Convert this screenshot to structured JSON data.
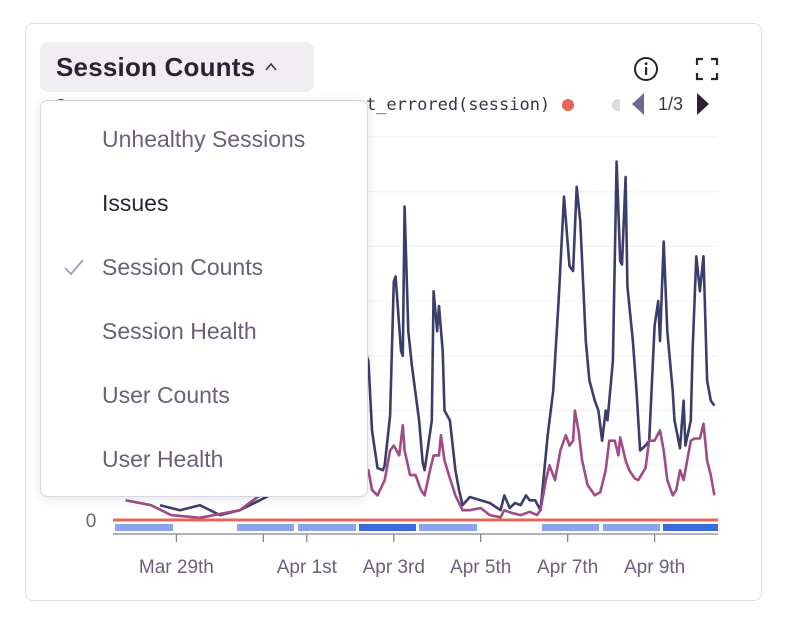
{
  "widget": {
    "title": "Session Counts",
    "info_icon": "info-icon",
    "fullscreen_icon": "expand-icon",
    "chevron_icon": "chevron-up-icon"
  },
  "legend": {
    "items": [
      {
        "label": "count_errored(session)",
        "color": "#e5675a"
      }
    ],
    "page": "1/3"
  },
  "dropdown": {
    "items": [
      {
        "label": "Unhealthy Sessions",
        "selected": false
      },
      {
        "label": "Issues",
        "selected": false
      },
      {
        "label": "Session Counts",
        "selected": true
      },
      {
        "label": "Session Health",
        "selected": false
      },
      {
        "label": "User Counts",
        "selected": false
      },
      {
        "label": "User Health",
        "selected": false
      }
    ]
  },
  "chart_data": {
    "type": "line",
    "grid": true,
    "xlim": [
      "03-27 13:00",
      "04-10 11:00"
    ],
    "ylim": [
      0,
      7
    ],
    "y_tick_labels": [
      "0"
    ],
    "x_tick_labels": [
      {
        "label": "Mar 29th",
        "at": "03-29 00:00"
      },
      {
        "label": "",
        "at": "03-31 00:00"
      },
      {
        "label": "Apr 1st",
        "at": "04-01 00:00"
      },
      {
        "label": "Apr 3rd",
        "at": "04-03 00:00"
      },
      {
        "label": "Apr 5th",
        "at": "04-05 00:00"
      },
      {
        "label": "Apr 7th",
        "at": "04-07 00:00"
      },
      {
        "label": "Apr 9th",
        "at": "04-09 00:00"
      }
    ],
    "series": [
      {
        "color": "#3d3d6b",
        "points": [
          [
            "03-28 15:00",
            0.27
          ],
          [
            "03-29 02:00",
            0.18
          ],
          [
            "03-29 13:00",
            0.27
          ],
          [
            "03-30 00:00",
            0.09
          ],
          [
            "03-30 11:00",
            0.18
          ],
          [
            "03-30 22:00",
            0.36
          ],
          [
            "03-31 20:00",
            0.73
          ],
          [
            "04-01 19:00",
            1.27
          ],
          [
            "04-02 08:00",
            3.09
          ],
          [
            "04-02 10:00",
            2.91
          ],
          [
            "04-02 12:00",
            1.64
          ],
          [
            "04-02 15:00",
            0.95
          ],
          [
            "04-02 18:00",
            0.91
          ],
          [
            "04-02 19:00",
            1.0
          ],
          [
            "04-02 22:00",
            1.91
          ],
          [
            "04-03 00:00",
            4.36
          ],
          [
            "04-03 01:00",
            4.45
          ],
          [
            "04-03 04:00",
            3.09
          ],
          [
            "04-03 05:00",
            3.0
          ],
          [
            "04-03 06:00",
            5.73
          ],
          [
            "04-03 08:00",
            3.45
          ],
          [
            "04-03 10:00",
            2.82
          ],
          [
            "04-03 14:00",
            1.82
          ],
          [
            "04-03 16:00",
            1.05
          ],
          [
            "04-03 17:00",
            0.91
          ],
          [
            "04-03 19:00",
            1.36
          ],
          [
            "04-03 21:00",
            1.82
          ],
          [
            "04-03 22:00",
            4.18
          ],
          [
            "04-04 00:00",
            3.45
          ],
          [
            "04-04 01:00",
            3.91
          ],
          [
            "04-04 03:00",
            3.09
          ],
          [
            "04-04 04:00",
            2.0
          ],
          [
            "04-04 07:00",
            1.82
          ],
          [
            "04-04 10:00",
            0.91
          ],
          [
            "04-04 12:00",
            0.55
          ],
          [
            "04-04 14:00",
            0.27
          ],
          [
            "04-04 18:00",
            0.42
          ],
          [
            "04-05 00:00",
            0.36
          ],
          [
            "04-05 05:00",
            0.31
          ],
          [
            "04-05 11:00",
            0.18
          ],
          [
            "04-05 13:00",
            0.45
          ],
          [
            "04-05 16:00",
            0.22
          ],
          [
            "04-05 19:00",
            0.31
          ],
          [
            "04-05 22:00",
            0.27
          ],
          [
            "04-06 01:00",
            0.45
          ],
          [
            "04-06 03:00",
            0.36
          ],
          [
            "04-06 06:00",
            0.36
          ],
          [
            "04-06 09:00",
            0.18
          ],
          [
            "04-06 13:00",
            1.55
          ],
          [
            "04-06 16:00",
            2.36
          ],
          [
            "04-06 19:00",
            4.0
          ],
          [
            "04-06 22:00",
            5.91
          ],
          [
            "04-07 01:00",
            4.64
          ],
          [
            "04-07 03:00",
            4.55
          ],
          [
            "04-07 05:00",
            6.09
          ],
          [
            "04-07 07:00",
            5.45
          ],
          [
            "04-07 10:00",
            3.27
          ],
          [
            "04-07 12:00",
            2.55
          ],
          [
            "04-07 15:00",
            2.18
          ],
          [
            "04-07 17:00",
            2.0
          ],
          [
            "04-07 19:00",
            1.45
          ],
          [
            "04-07 21:00",
            2.0
          ],
          [
            "04-07 22:00",
            1.82
          ],
          [
            "04-08 01:00",
            2.91
          ],
          [
            "04-08 03:00",
            6.55
          ],
          [
            "04-08 05:00",
            4.73
          ],
          [
            "04-08 06:00",
            4.67
          ],
          [
            "04-08 08:00",
            6.27
          ],
          [
            "04-08 09:00",
            4.27
          ],
          [
            "04-08 12:00",
            3.27
          ],
          [
            "04-08 14:00",
            2.36
          ],
          [
            "04-08 16:00",
            1.27
          ],
          [
            "04-08 19:00",
            1.36
          ],
          [
            "04-08 21:00",
            1.45
          ],
          [
            "04-09 00:00",
            3.55
          ],
          [
            "04-09 02:00",
            4.0
          ],
          [
            "04-09 03:00",
            3.27
          ],
          [
            "04-09 05:00",
            5.09
          ],
          [
            "04-09 07:00",
            3.45
          ],
          [
            "04-09 10:00",
            2.36
          ],
          [
            "04-09 11:00",
            1.82
          ],
          [
            "04-09 14:00",
            1.31
          ],
          [
            "04-09 16:00",
            2.18
          ],
          [
            "04-09 17:00",
            1.36
          ],
          [
            "04-09 20:00",
            1.82
          ],
          [
            "04-09 21:00",
            3.09
          ],
          [
            "04-09 23:00",
            4.82
          ],
          [
            "04-10 01:00",
            4.18
          ],
          [
            "04-10 03:00",
            4.82
          ],
          [
            "04-10 05:00",
            2.55
          ],
          [
            "04-10 07:00",
            2.18
          ],
          [
            "04-10 09:00",
            2.09
          ]
        ]
      },
      {
        "color": "#a04a86",
        "points": [
          [
            "03-27 20:00",
            0.36
          ],
          [
            "03-28 10:00",
            0.27
          ],
          [
            "03-28 21:00",
            0.09
          ],
          [
            "03-29 13:00",
            0.04
          ],
          [
            "03-30 11:00",
            0.18
          ],
          [
            "03-30 22:00",
            0.45
          ],
          [
            "03-31 20:00",
            0.55
          ],
          [
            "04-01 19:00",
            0.73
          ],
          [
            "04-02 08:00",
            0.91
          ],
          [
            "04-02 10:00",
            0.91
          ],
          [
            "04-02 12:00",
            0.55
          ],
          [
            "04-02 15:00",
            0.45
          ],
          [
            "04-02 19:00",
            0.73
          ],
          [
            "04-02 22:00",
            1.27
          ],
          [
            "04-03 00:00",
            1.36
          ],
          [
            "04-03 03:00",
            1.18
          ],
          [
            "04-03 05:00",
            1.73
          ],
          [
            "04-03 06:00",
            1.27
          ],
          [
            "04-03 09:00",
            0.82
          ],
          [
            "04-03 12:00",
            0.82
          ],
          [
            "04-03 15:00",
            0.55
          ],
          [
            "04-03 17:00",
            0.45
          ],
          [
            "04-03 20:00",
            0.91
          ],
          [
            "04-03 22:00",
            1.18
          ],
          [
            "04-04 01:00",
            1.18
          ],
          [
            "04-04 02:00",
            1.55
          ],
          [
            "04-04 04:00",
            1.09
          ],
          [
            "04-04 07:00",
            0.76
          ],
          [
            "04-04 10:00",
            0.45
          ],
          [
            "04-04 14:00",
            0.18
          ],
          [
            "04-04 18:00",
            0.18
          ],
          [
            "04-05 00:00",
            0.22
          ],
          [
            "04-05 05:00",
            0.09
          ],
          [
            "04-05 11:00",
            0.05
          ],
          [
            "04-05 13:00",
            0.18
          ],
          [
            "04-05 17:00",
            0.13
          ],
          [
            "04-05 22:00",
            0.09
          ],
          [
            "04-06 03:00",
            0.15
          ],
          [
            "04-06 07:00",
            0.09
          ],
          [
            "04-06 09:00",
            0.18
          ],
          [
            "04-06 12:00",
            0.73
          ],
          [
            "04-06 14:00",
            1.0
          ],
          [
            "04-06 17:00",
            0.73
          ],
          [
            "04-06 20:00",
            1.27
          ],
          [
            "04-06 23:00",
            1.55
          ],
          [
            "04-07 01:00",
            1.36
          ],
          [
            "04-07 03:00",
            1.45
          ],
          [
            "04-07 04:00",
            2.0
          ],
          [
            "04-07 06:00",
            1.64
          ],
          [
            "04-07 08:00",
            1.09
          ],
          [
            "04-07 11:00",
            0.64
          ],
          [
            "04-07 15:00",
            0.45
          ],
          [
            "04-07 18:00",
            0.51
          ],
          [
            "04-07 21:00",
            0.91
          ],
          [
            "04-07 23:00",
            1.45
          ],
          [
            "04-08 02:00",
            1.45
          ],
          [
            "04-08 04:00",
            1.18
          ],
          [
            "04-08 05:00",
            1.51
          ],
          [
            "04-08 08:00",
            1.09
          ],
          [
            "04-08 10:00",
            0.91
          ],
          [
            "04-08 13:00",
            0.76
          ],
          [
            "04-08 15:00",
            0.73
          ],
          [
            "04-08 19:00",
            0.95
          ],
          [
            "04-08 21:00",
            1.45
          ],
          [
            "04-09 00:00",
            1.45
          ],
          [
            "04-09 03:00",
            1.64
          ],
          [
            "04-09 05:00",
            1.27
          ],
          [
            "04-09 07:00",
            0.73
          ],
          [
            "04-09 10:00",
            0.45
          ],
          [
            "04-09 12:00",
            0.55
          ],
          [
            "04-09 14:00",
            0.91
          ],
          [
            "04-09 16:00",
            0.73
          ],
          [
            "04-09 20:00",
            1.45
          ],
          [
            "04-09 22:00",
            1.49
          ],
          [
            "04-10 01:00",
            1.49
          ],
          [
            "04-10 03:00",
            1.76
          ],
          [
            "04-10 05:00",
            1.09
          ],
          [
            "04-10 07:00",
            0.82
          ],
          [
            "04-10 09:00",
            0.45
          ]
        ]
      },
      {
        "name": "count_errored(session)",
        "color": "#e5675a",
        "points": [
          [
            "03-27 13:00",
            0
          ],
          [
            "04-10 11:00",
            0
          ]
        ]
      }
    ],
    "release_bar_colors": [
      "#8aa6e6",
      "#3a6cd9"
    ]
  }
}
